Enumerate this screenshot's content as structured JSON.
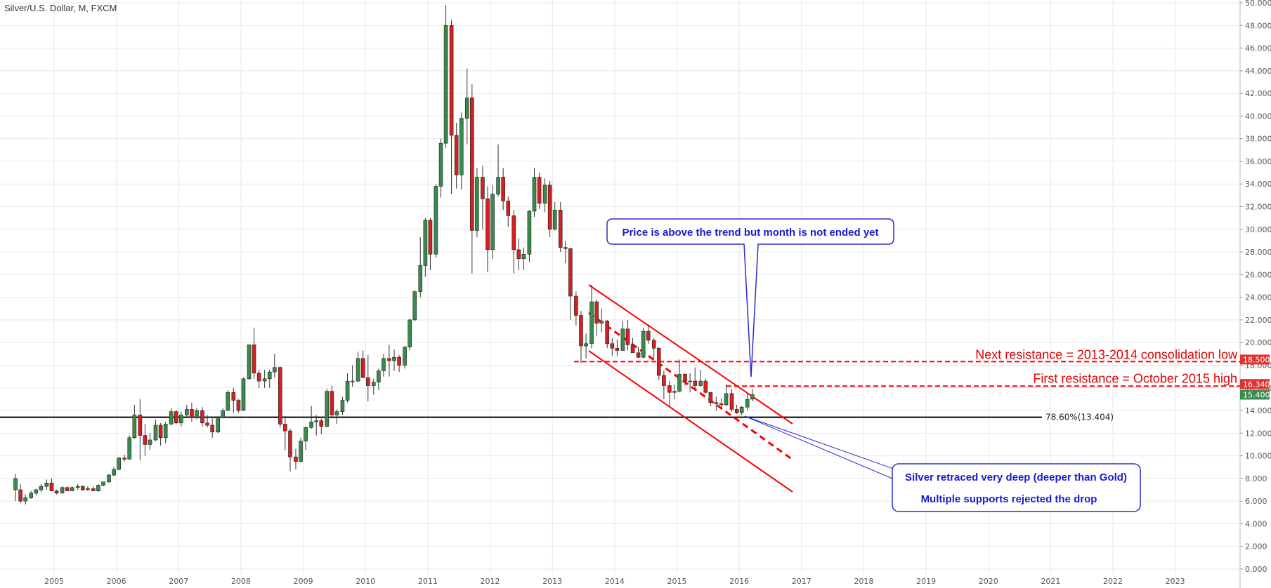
{
  "header": {
    "title": "Silver/U.S. Dollar, M, FXCM"
  },
  "colors": {
    "up": "#3a8a4e",
    "down": "#d42020",
    "annotation_red": "#ff0000",
    "annotation_blue": "#1f1fd8",
    "grid": "#e8e8e8"
  },
  "chart_data": {
    "type": "candlestick",
    "title": "Silver/U.S. Dollar, M, FXCM",
    "xlim": [
      2004.35,
      2024.5
    ],
    "ylim": [
      0,
      50
    ],
    "y_ticks": [
      "0.000",
      "2.000",
      "4.000",
      "6.000",
      "8.000",
      "10.000",
      "12.000",
      "14.000",
      "16.000",
      "18.000",
      "20.000",
      "22.000",
      "24.000",
      "26.000",
      "28.000",
      "30.000",
      "32.000",
      "34.000",
      "36.000",
      "38.000",
      "40.000",
      "42.000",
      "44.000",
      "46.000",
      "48.000",
      "50.000"
    ],
    "x_ticks": [
      "2005",
      "2006",
      "2007",
      "2008",
      "2009",
      "2010",
      "2011",
      "2012",
      "2013",
      "2014",
      "2015",
      "2016",
      "2017",
      "2018",
      "2019",
      "2020",
      "2021",
      "2022",
      "2023"
    ],
    "grid": true,
    "price_badges": [
      {
        "label": "18.500",
        "value": 18.5,
        "color": "#e03030"
      },
      {
        "label": "16.340",
        "value": 16.34,
        "color": "#e03030"
      },
      {
        "label": "15.400",
        "value": 15.4,
        "color": "#3a8a4e"
      }
    ],
    "fib_level": {
      "value": 13.404,
      "label": "78.60%(13.404)"
    },
    "resistance_lines": [
      {
        "value": 18.5,
        "label": "Next resistance = 2013-2014 consolidation low"
      },
      {
        "value": 16.34,
        "label": "First resistance = October 2015 high"
      }
    ],
    "callouts": {
      "top": "Price is above the trend but month is not ended yet",
      "bottom_line1": "Silver retraced very deep (deeper than Gold)",
      "bottom_line2": "Multiple supports rejected the drop"
    },
    "candles": [
      {
        "t": 2004.38,
        "o": 7.0,
        "h": 8.4,
        "l": 6.0,
        "c": 8.0
      },
      {
        "t": 2004.46,
        "o": 7.0,
        "h": 7.5,
        "l": 5.8,
        "c": 6.0
      },
      {
        "t": 2004.54,
        "o": 6.0,
        "h": 6.6,
        "l": 5.7,
        "c": 6.3
      },
      {
        "t": 2004.63,
        "o": 6.3,
        "h": 6.9,
        "l": 6.2,
        "c": 6.7
      },
      {
        "t": 2004.71,
        "o": 6.7,
        "h": 7.1,
        "l": 6.5,
        "c": 7.0
      },
      {
        "t": 2004.79,
        "o": 7.0,
        "h": 7.5,
        "l": 6.8,
        "c": 7.3
      },
      {
        "t": 2004.88,
        "o": 7.3,
        "h": 7.9,
        "l": 7.0,
        "c": 7.6
      },
      {
        "t": 2004.96,
        "o": 7.6,
        "h": 8.0,
        "l": 6.9,
        "c": 6.9
      },
      {
        "t": 2005.04,
        "o": 6.9,
        "h": 7.0,
        "l": 6.6,
        "c": 6.7
      },
      {
        "t": 2005.13,
        "o": 6.7,
        "h": 7.3,
        "l": 6.7,
        "c": 7.2
      },
      {
        "t": 2005.21,
        "o": 7.2,
        "h": 7.3,
        "l": 6.9,
        "c": 6.9
      },
      {
        "t": 2005.29,
        "o": 6.9,
        "h": 7.3,
        "l": 6.9,
        "c": 7.2
      },
      {
        "t": 2005.38,
        "o": 7.2,
        "h": 7.5,
        "l": 7.0,
        "c": 7.3
      },
      {
        "t": 2005.46,
        "o": 7.3,
        "h": 7.4,
        "l": 6.9,
        "c": 7.0
      },
      {
        "t": 2005.54,
        "o": 7.0,
        "h": 7.3,
        "l": 6.9,
        "c": 7.1
      },
      {
        "t": 2005.63,
        "o": 7.1,
        "h": 7.3,
        "l": 6.9,
        "c": 6.9
      },
      {
        "t": 2005.71,
        "o": 6.9,
        "h": 7.5,
        "l": 6.8,
        "c": 7.4
      },
      {
        "t": 2005.79,
        "o": 7.4,
        "h": 7.7,
        "l": 7.3,
        "c": 7.7
      },
      {
        "t": 2005.88,
        "o": 7.7,
        "h": 8.4,
        "l": 7.6,
        "c": 8.3
      },
      {
        "t": 2005.96,
        "o": 8.3,
        "h": 9.0,
        "l": 8.2,
        "c": 8.8
      },
      {
        "t": 2006.04,
        "o": 8.8,
        "h": 9.9,
        "l": 8.7,
        "c": 9.8
      },
      {
        "t": 2006.13,
        "o": 9.8,
        "h": 10.1,
        "l": 9.5,
        "c": 9.7
      },
      {
        "t": 2006.21,
        "o": 9.7,
        "h": 11.8,
        "l": 9.7,
        "c": 11.6
      },
      {
        "t": 2006.29,
        "o": 11.6,
        "h": 14.5,
        "l": 11.5,
        "c": 13.6
      },
      {
        "t": 2006.38,
        "o": 13.6,
        "h": 15.0,
        "l": 9.6,
        "c": 11.8
      },
      {
        "t": 2006.46,
        "o": 11.8,
        "h": 12.8,
        "l": 10.0,
        "c": 11.0
      },
      {
        "t": 2006.54,
        "o": 11.0,
        "h": 12.0,
        "l": 10.5,
        "c": 11.4
      },
      {
        "t": 2006.63,
        "o": 11.4,
        "h": 13.2,
        "l": 11.3,
        "c": 12.7
      },
      {
        "t": 2006.71,
        "o": 12.7,
        "h": 12.9,
        "l": 10.9,
        "c": 11.6
      },
      {
        "t": 2006.79,
        "o": 11.6,
        "h": 13.0,
        "l": 11.1,
        "c": 12.8
      },
      {
        "t": 2006.88,
        "o": 12.8,
        "h": 14.2,
        "l": 12.7,
        "c": 13.9
      },
      {
        "t": 2006.96,
        "o": 13.9,
        "h": 14.0,
        "l": 12.8,
        "c": 12.9
      },
      {
        "t": 2007.04,
        "o": 12.9,
        "h": 13.9,
        "l": 12.6,
        "c": 13.6
      },
      {
        "t": 2007.13,
        "o": 13.6,
        "h": 14.5,
        "l": 13.4,
        "c": 14.1
      },
      {
        "t": 2007.21,
        "o": 14.1,
        "h": 14.7,
        "l": 13.0,
        "c": 13.4
      },
      {
        "t": 2007.29,
        "o": 13.4,
        "h": 14.2,
        "l": 13.2,
        "c": 14.0
      },
      {
        "t": 2007.38,
        "o": 14.0,
        "h": 14.3,
        "l": 12.6,
        "c": 12.9
      },
      {
        "t": 2007.46,
        "o": 12.9,
        "h": 13.6,
        "l": 12.5,
        "c": 12.7
      },
      {
        "t": 2007.54,
        "o": 12.7,
        "h": 13.3,
        "l": 11.6,
        "c": 12.1
      },
      {
        "t": 2007.63,
        "o": 12.1,
        "h": 13.5,
        "l": 12.0,
        "c": 13.4
      },
      {
        "t": 2007.71,
        "o": 13.4,
        "h": 14.2,
        "l": 13.3,
        "c": 14.0
      },
      {
        "t": 2007.79,
        "o": 14.0,
        "h": 15.8,
        "l": 14.0,
        "c": 15.6
      },
      {
        "t": 2007.88,
        "o": 15.6,
        "h": 16.0,
        "l": 13.8,
        "c": 14.9
      },
      {
        "t": 2007.96,
        "o": 14.9,
        "h": 15.0,
        "l": 13.8,
        "c": 14.0
      },
      {
        "t": 2008.04,
        "o": 14.0,
        "h": 16.9,
        "l": 14.0,
        "c": 16.8
      },
      {
        "t": 2008.13,
        "o": 16.8,
        "h": 19.8,
        "l": 16.7,
        "c": 19.8
      },
      {
        "t": 2008.21,
        "o": 19.8,
        "h": 21.3,
        "l": 16.8,
        "c": 17.3
      },
      {
        "t": 2008.29,
        "o": 17.3,
        "h": 17.6,
        "l": 16.0,
        "c": 16.6
      },
      {
        "t": 2008.38,
        "o": 16.6,
        "h": 17.6,
        "l": 16.0,
        "c": 16.8
      },
      {
        "t": 2008.46,
        "o": 16.8,
        "h": 17.6,
        "l": 16.0,
        "c": 17.4
      },
      {
        "t": 2008.54,
        "o": 17.4,
        "h": 19.0,
        "l": 16.9,
        "c": 17.8
      },
      {
        "t": 2008.63,
        "o": 17.8,
        "h": 17.9,
        "l": 12.5,
        "c": 12.8
      },
      {
        "t": 2008.71,
        "o": 12.8,
        "h": 13.5,
        "l": 10.5,
        "c": 12.2
      },
      {
        "t": 2008.79,
        "o": 12.2,
        "h": 12.4,
        "l": 8.6,
        "c": 9.9
      },
      {
        "t": 2008.88,
        "o": 9.9,
        "h": 10.6,
        "l": 8.8,
        "c": 9.5
      },
      {
        "t": 2008.96,
        "o": 9.5,
        "h": 11.6,
        "l": 9.4,
        "c": 11.3
      },
      {
        "t": 2009.04,
        "o": 11.3,
        "h": 12.6,
        "l": 10.5,
        "c": 12.5
      },
      {
        "t": 2009.13,
        "o": 12.5,
        "h": 14.4,
        "l": 12.4,
        "c": 13.0
      },
      {
        "t": 2009.21,
        "o": 13.0,
        "h": 13.6,
        "l": 11.8,
        "c": 13.1
      },
      {
        "t": 2009.29,
        "o": 13.1,
        "h": 13.3,
        "l": 11.9,
        "c": 12.6
      },
      {
        "t": 2009.38,
        "o": 12.6,
        "h": 15.9,
        "l": 12.5,
        "c": 15.7
      },
      {
        "t": 2009.46,
        "o": 15.7,
        "h": 16.2,
        "l": 13.3,
        "c": 13.6
      },
      {
        "t": 2009.54,
        "o": 13.6,
        "h": 14.1,
        "l": 12.8,
        "c": 13.9
      },
      {
        "t": 2009.63,
        "o": 13.9,
        "h": 15.2,
        "l": 13.6,
        "c": 14.9
      },
      {
        "t": 2009.71,
        "o": 14.9,
        "h": 17.3,
        "l": 14.7,
        "c": 16.6
      },
      {
        "t": 2009.79,
        "o": 16.6,
        "h": 18.0,
        "l": 16.1,
        "c": 16.6
      },
      {
        "t": 2009.88,
        "o": 16.6,
        "h": 19.2,
        "l": 16.5,
        "c": 18.6
      },
      {
        "t": 2009.96,
        "o": 18.6,
        "h": 19.3,
        "l": 16.9,
        "c": 16.9
      },
      {
        "t": 2010.04,
        "o": 16.9,
        "h": 18.9,
        "l": 14.8,
        "c": 16.2
      },
      {
        "t": 2010.13,
        "o": 16.2,
        "h": 16.8,
        "l": 15.4,
        "c": 16.5
      },
      {
        "t": 2010.21,
        "o": 16.5,
        "h": 17.7,
        "l": 15.8,
        "c": 17.5
      },
      {
        "t": 2010.29,
        "o": 17.5,
        "h": 19.0,
        "l": 17.0,
        "c": 18.6
      },
      {
        "t": 2010.38,
        "o": 18.6,
        "h": 19.8,
        "l": 17.0,
        "c": 18.4
      },
      {
        "t": 2010.46,
        "o": 18.4,
        "h": 19.4,
        "l": 17.5,
        "c": 18.7
      },
      {
        "t": 2010.54,
        "o": 18.7,
        "h": 18.9,
        "l": 17.4,
        "c": 18.0
      },
      {
        "t": 2010.63,
        "o": 18.0,
        "h": 19.7,
        "l": 17.7,
        "c": 19.6
      },
      {
        "t": 2010.71,
        "o": 19.6,
        "h": 22.1,
        "l": 19.3,
        "c": 22.0
      },
      {
        "t": 2010.79,
        "o": 22.0,
        "h": 24.6,
        "l": 21.9,
        "c": 24.5
      },
      {
        "t": 2010.88,
        "o": 24.5,
        "h": 29.3,
        "l": 24.0,
        "c": 26.8
      },
      {
        "t": 2010.96,
        "o": 26.8,
        "h": 31.0,
        "l": 25.8,
        "c": 30.8
      },
      {
        "t": 2011.04,
        "o": 30.8,
        "h": 31.0,
        "l": 26.4,
        "c": 27.8
      },
      {
        "t": 2011.13,
        "o": 27.8,
        "h": 34.0,
        "l": 27.5,
        "c": 33.8
      },
      {
        "t": 2011.21,
        "o": 33.8,
        "h": 38.0,
        "l": 32.8,
        "c": 37.6
      },
      {
        "t": 2011.29,
        "o": 37.6,
        "h": 49.8,
        "l": 37.2,
        "c": 48.0
      },
      {
        "t": 2011.38,
        "o": 48.0,
        "h": 48.5,
        "l": 33.1,
        "c": 38.3
      },
      {
        "t": 2011.46,
        "o": 38.3,
        "h": 39.4,
        "l": 33.6,
        "c": 34.8
      },
      {
        "t": 2011.54,
        "o": 34.8,
        "h": 40.3,
        "l": 33.5,
        "c": 39.8
      },
      {
        "t": 2011.63,
        "o": 39.8,
        "h": 44.2,
        "l": 37.5,
        "c": 41.6
      },
      {
        "t": 2011.71,
        "o": 41.6,
        "h": 42.8,
        "l": 26.1,
        "c": 29.9
      },
      {
        "t": 2011.79,
        "o": 29.9,
        "h": 35.4,
        "l": 29.3,
        "c": 34.6
      },
      {
        "t": 2011.88,
        "o": 34.6,
        "h": 35.6,
        "l": 30.0,
        "c": 32.7
      },
      {
        "t": 2011.96,
        "o": 32.7,
        "h": 33.8,
        "l": 26.2,
        "c": 28.2
      },
      {
        "t": 2012.04,
        "o": 28.2,
        "h": 33.9,
        "l": 27.4,
        "c": 33.1
      },
      {
        "t": 2012.13,
        "o": 33.1,
        "h": 37.5,
        "l": 32.9,
        "c": 34.6
      },
      {
        "t": 2012.21,
        "o": 34.6,
        "h": 35.4,
        "l": 31.7,
        "c": 32.5
      },
      {
        "t": 2012.29,
        "o": 32.5,
        "h": 32.9,
        "l": 30.2,
        "c": 31.2
      },
      {
        "t": 2012.38,
        "o": 31.2,
        "h": 31.7,
        "l": 26.1,
        "c": 28.2
      },
      {
        "t": 2012.46,
        "o": 28.2,
        "h": 29.2,
        "l": 26.4,
        "c": 27.4
      },
      {
        "t": 2012.54,
        "o": 27.4,
        "h": 28.4,
        "l": 26.4,
        "c": 27.8
      },
      {
        "t": 2012.63,
        "o": 27.8,
        "h": 31.7,
        "l": 27.1,
        "c": 31.6
      },
      {
        "t": 2012.71,
        "o": 31.6,
        "h": 35.4,
        "l": 31.1,
        "c": 34.6
      },
      {
        "t": 2012.79,
        "o": 34.6,
        "h": 35.0,
        "l": 31.8,
        "c": 32.3
      },
      {
        "t": 2012.88,
        "o": 32.3,
        "h": 34.5,
        "l": 31.5,
        "c": 33.9
      },
      {
        "t": 2012.96,
        "o": 33.9,
        "h": 34.3,
        "l": 29.3,
        "c": 30.0
      },
      {
        "t": 2013.04,
        "o": 30.0,
        "h": 32.4,
        "l": 29.9,
        "c": 31.7
      },
      {
        "t": 2013.13,
        "o": 31.7,
        "h": 32.4,
        "l": 28.0,
        "c": 28.4
      },
      {
        "t": 2013.21,
        "o": 28.4,
        "h": 29.0,
        "l": 27.0,
        "c": 28.3
      },
      {
        "t": 2013.29,
        "o": 28.3,
        "h": 28.3,
        "l": 22.0,
        "c": 24.1
      },
      {
        "t": 2013.38,
        "o": 24.1,
        "h": 24.5,
        "l": 21.5,
        "c": 22.4
      },
      {
        "t": 2013.46,
        "o": 22.4,
        "h": 22.8,
        "l": 18.2,
        "c": 19.7
      },
      {
        "t": 2013.54,
        "o": 19.7,
        "h": 20.8,
        "l": 18.6,
        "c": 19.9
      },
      {
        "t": 2013.63,
        "o": 19.9,
        "h": 25.1,
        "l": 19.5,
        "c": 23.6
      },
      {
        "t": 2013.71,
        "o": 23.6,
        "h": 23.8,
        "l": 20.6,
        "c": 21.7
      },
      {
        "t": 2013.79,
        "o": 21.7,
        "h": 23.0,
        "l": 20.9,
        "c": 21.9
      },
      {
        "t": 2013.88,
        "o": 21.9,
        "h": 22.0,
        "l": 19.5,
        "c": 19.9
      },
      {
        "t": 2013.96,
        "o": 19.9,
        "h": 20.4,
        "l": 18.8,
        "c": 19.5
      },
      {
        "t": 2014.04,
        "o": 19.5,
        "h": 20.3,
        "l": 18.8,
        "c": 19.3
      },
      {
        "t": 2014.13,
        "o": 19.3,
        "h": 21.9,
        "l": 19.3,
        "c": 21.2
      },
      {
        "t": 2014.21,
        "o": 21.2,
        "h": 22.0,
        "l": 19.3,
        "c": 19.8
      },
      {
        "t": 2014.29,
        "o": 19.8,
        "h": 20.4,
        "l": 19.1,
        "c": 19.1
      },
      {
        "t": 2014.38,
        "o": 19.1,
        "h": 19.6,
        "l": 18.6,
        "c": 18.7
      },
      {
        "t": 2014.46,
        "o": 18.7,
        "h": 21.3,
        "l": 18.6,
        "c": 21.0
      },
      {
        "t": 2014.54,
        "o": 21.0,
        "h": 21.6,
        "l": 19.9,
        "c": 20.2
      },
      {
        "t": 2014.63,
        "o": 20.2,
        "h": 20.4,
        "l": 18.6,
        "c": 19.5
      },
      {
        "t": 2014.71,
        "o": 19.5,
        "h": 19.6,
        "l": 16.7,
        "c": 17.1
      },
      {
        "t": 2014.79,
        "o": 17.1,
        "h": 17.5,
        "l": 15.0,
        "c": 16.2
      },
      {
        "t": 2014.88,
        "o": 16.2,
        "h": 16.6,
        "l": 14.4,
        "c": 15.6
      },
      {
        "t": 2014.96,
        "o": 15.6,
        "h": 16.3,
        "l": 15.0,
        "c": 15.7
      },
      {
        "t": 2015.04,
        "o": 15.7,
        "h": 18.5,
        "l": 15.6,
        "c": 17.2
      },
      {
        "t": 2015.13,
        "o": 17.2,
        "h": 17.3,
        "l": 16.2,
        "c": 16.6
      },
      {
        "t": 2015.21,
        "o": 16.6,
        "h": 17.3,
        "l": 15.6,
        "c": 16.6
      },
      {
        "t": 2015.29,
        "o": 16.6,
        "h": 17.8,
        "l": 15.8,
        "c": 16.2
      },
      {
        "t": 2015.38,
        "o": 16.2,
        "h": 17.6,
        "l": 16.1,
        "c": 16.6
      },
      {
        "t": 2015.46,
        "o": 16.6,
        "h": 16.8,
        "l": 15.5,
        "c": 15.6
      },
      {
        "t": 2015.54,
        "o": 15.6,
        "h": 15.6,
        "l": 14.4,
        "c": 14.7
      },
      {
        "t": 2015.63,
        "o": 14.7,
        "h": 15.2,
        "l": 14.0,
        "c": 14.6
      },
      {
        "t": 2015.71,
        "o": 14.6,
        "h": 15.1,
        "l": 14.1,
        "c": 14.5
      },
      {
        "t": 2015.79,
        "o": 14.5,
        "h": 16.3,
        "l": 14.4,
        "c": 15.5
      },
      {
        "t": 2015.88,
        "o": 15.5,
        "h": 15.9,
        "l": 13.9,
        "c": 14.1
      },
      {
        "t": 2015.96,
        "o": 14.1,
        "h": 14.5,
        "l": 13.7,
        "c": 13.8
      },
      {
        "t": 2016.04,
        "o": 13.8,
        "h": 14.4,
        "l": 13.6,
        "c": 14.3
      },
      {
        "t": 2016.13,
        "o": 14.3,
        "h": 15.5,
        "l": 14.0,
        "c": 15.0
      },
      {
        "t": 2016.21,
        "o": 15.0,
        "h": 15.9,
        "l": 14.8,
        "c": 15.4
      }
    ]
  }
}
